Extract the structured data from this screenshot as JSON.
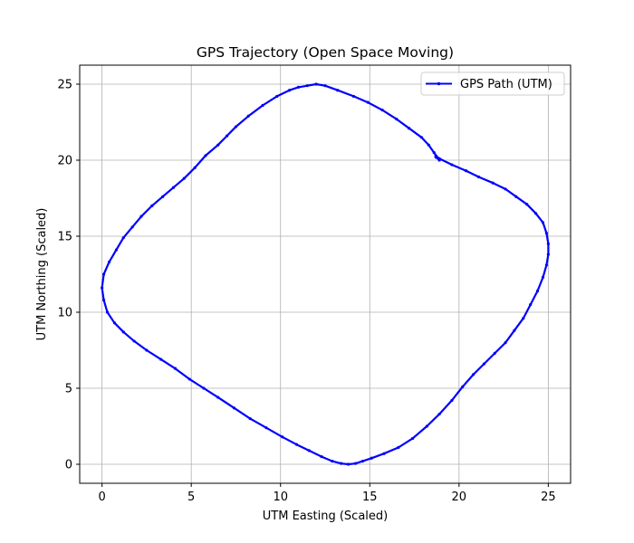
{
  "chart_data": {
    "type": "line",
    "title": "GPS Trajectory (Open Space Moving)",
    "xlabel": "UTM Easting (Scaled)",
    "ylabel": "UTM Northing (Scaled)",
    "xlim": [
      -1.25,
      26.25
    ],
    "ylim": [
      -1.25,
      26.25
    ],
    "xticks": [
      0,
      5,
      10,
      15,
      20,
      25
    ],
    "yticks": [
      0,
      5,
      10,
      15,
      20,
      25
    ],
    "grid": true,
    "legend_position": "top-right",
    "series": [
      {
        "name": "GPS Path (UTM)",
        "color": "#0000ff",
        "marker": "point",
        "x": [
          18.7,
          18.9,
          18.6,
          18.3,
          17.9,
          17.2,
          16.5,
          15.7,
          14.9,
          14.1,
          13.2,
          12.5,
          12.0,
          11.5,
          11.0,
          10.5,
          9.8,
          9.0,
          8.2,
          7.5,
          7.0,
          6.5,
          5.8,
          5.2,
          4.6,
          4.0,
          3.4,
          2.8,
          2.2,
          1.7,
          1.2,
          0.8,
          0.4,
          0.1,
          0.0,
          0.1,
          0.3,
          0.7,
          1.2,
          1.8,
          2.5,
          3.3,
          4.1,
          4.9,
          5.7,
          6.5,
          7.4,
          8.3,
          9.2,
          10.1,
          10.9,
          11.6,
          12.3,
          12.9,
          13.4,
          13.8,
          14.2,
          14.6,
          15.1,
          15.8,
          16.6,
          17.4,
          18.2,
          18.9,
          19.6,
          20.2,
          20.8,
          21.4,
          22.0,
          22.6,
          23.1,
          23.6,
          24.0,
          24.4,
          24.7,
          24.9,
          25.0,
          25.0,
          24.9,
          24.7,
          24.3,
          23.8,
          23.2,
          22.6,
          21.9,
          21.1,
          20.4,
          19.6,
          18.9,
          18.7
        ],
        "y": [
          20.2,
          20.0,
          20.5,
          21.0,
          21.5,
          22.1,
          22.7,
          23.3,
          23.8,
          24.2,
          24.6,
          24.9,
          25.0,
          24.9,
          24.8,
          24.6,
          24.2,
          23.6,
          22.9,
          22.2,
          21.6,
          21.0,
          20.3,
          19.5,
          18.8,
          18.2,
          17.6,
          17.0,
          16.3,
          15.6,
          14.9,
          14.1,
          13.3,
          12.5,
          11.6,
          10.8,
          10.0,
          9.3,
          8.7,
          8.1,
          7.5,
          6.9,
          6.3,
          5.6,
          5.0,
          4.4,
          3.7,
          3.0,
          2.4,
          1.8,
          1.3,
          0.9,
          0.5,
          0.2,
          0.05,
          0.0,
          0.05,
          0.2,
          0.4,
          0.7,
          1.1,
          1.7,
          2.5,
          3.3,
          4.2,
          5.1,
          5.9,
          6.6,
          7.3,
          8.0,
          8.8,
          9.6,
          10.5,
          11.4,
          12.3,
          13.1,
          13.8,
          14.5,
          15.2,
          15.9,
          16.5,
          17.1,
          17.6,
          18.1,
          18.5,
          18.9,
          19.3,
          19.7,
          20.1,
          20.3
        ]
      }
    ]
  }
}
